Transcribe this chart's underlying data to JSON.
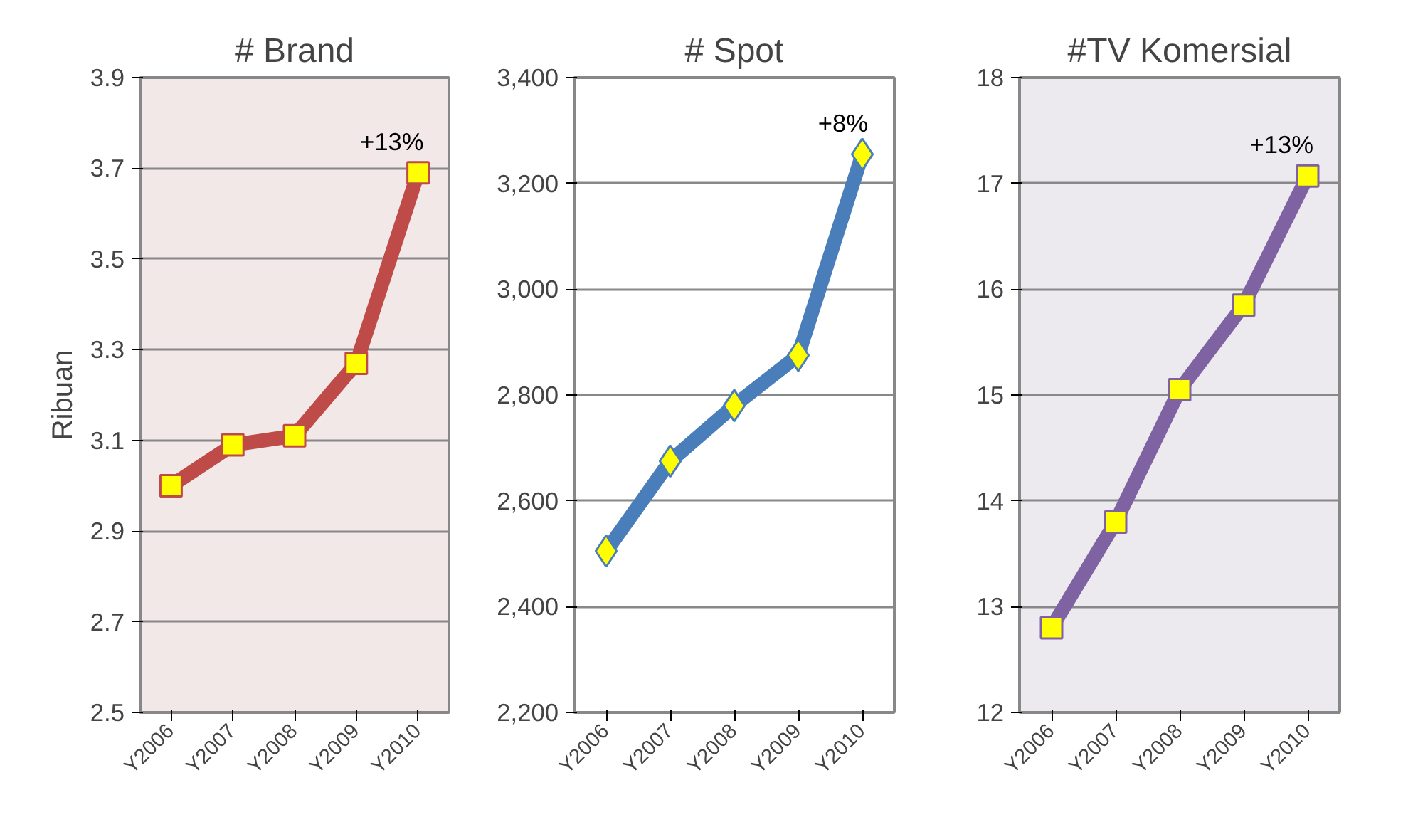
{
  "chart_data": [
    {
      "type": "line",
      "title": "# Brand",
      "ylabel": "Ribuan",
      "categories": [
        "Y2006",
        "Y2007",
        "Y2008",
        "Y2009",
        "Y2010"
      ],
      "series": [
        {
          "color": "#be4b48",
          "values": [
            3.0,
            3.09,
            3.11,
            3.27,
            3.69
          ]
        }
      ],
      "ylim": [
        2.5,
        3.9
      ],
      "yticks": [
        {
          "value": 2.5,
          "label": "2.5"
        },
        {
          "value": 2.7,
          "label": "2.7"
        },
        {
          "value": 2.9,
          "label": "2.9"
        },
        {
          "value": 3.1,
          "label": "3.1"
        },
        {
          "value": 3.3,
          "label": "3.3"
        },
        {
          "value": 3.5,
          "label": "3.5"
        },
        {
          "value": 3.7,
          "label": "3.7"
        },
        {
          "value": 3.9,
          "label": "3.9"
        }
      ],
      "grid": "y",
      "marker": "square",
      "annotations": [
        {
          "text": "+13%",
          "x": "Y2010",
          "y": 3.69
        }
      ]
    },
    {
      "type": "line",
      "title": "# Spot",
      "categories": [
        "Y2006",
        "Y2007",
        "Y2008",
        "Y2009",
        "Y2010"
      ],
      "series": [
        {
          "color": "#4a7ebb",
          "values": [
            2505,
            2675,
            2780,
            2875,
            3255
          ]
        }
      ],
      "ylim": [
        2200,
        3400
      ],
      "yticks": [
        {
          "value": 2200,
          "label": "2,200"
        },
        {
          "value": 2400,
          "label": "2,400"
        },
        {
          "value": 2600,
          "label": "2,600"
        },
        {
          "value": 2800,
          "label": "2,800"
        },
        {
          "value": 3000,
          "label": "3,000"
        },
        {
          "value": 3200,
          "label": "3,200"
        },
        {
          "value": 3400,
          "label": "3,400"
        }
      ],
      "grid": "y",
      "marker": "diamond",
      "annotations": [
        {
          "text": "+8%",
          "x": "Y2010",
          "y": 3255
        }
      ]
    },
    {
      "type": "line",
      "title": "#TV Komersial",
      "categories": [
        "Y2006",
        "Y2007",
        "Y2008",
        "Y2009",
        "Y2010"
      ],
      "series": [
        {
          "color": "#7e62a1",
          "values": [
            12.8,
            13.8,
            15.05,
            15.85,
            17.07
          ]
        }
      ],
      "ylim": [
        12,
        18
      ],
      "yticks": [
        12,
        13,
        14,
        15,
        16,
        17,
        18
      ],
      "grid": "y",
      "marker": "square",
      "annotations": [
        {
          "text": "+13%",
          "x": "Y2010",
          "y": 17.07
        }
      ]
    }
  ]
}
